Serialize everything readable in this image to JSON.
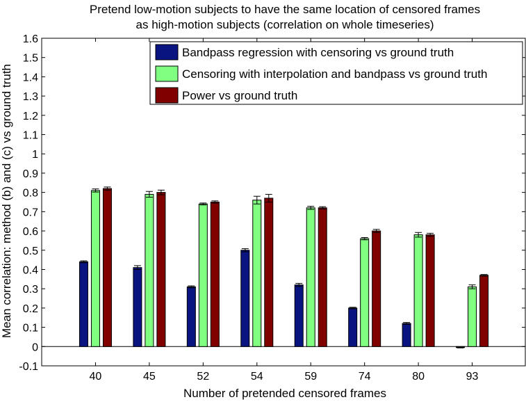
{
  "chart_data": {
    "type": "bar",
    "title_lines": [
      "Pretend low-motion subjects to have the same location of censored frames",
      "as high-motion subjects (correlation on whole timeseries)"
    ],
    "xlabel": "Number of pretended censored frames",
    "ylabel": "Mean correlation: method (b) and (c) vs ground truth",
    "categories": [
      "40",
      "45",
      "52",
      "54",
      "59",
      "74",
      "80",
      "93"
    ],
    "ylim": [
      -0.1,
      1.6
    ],
    "yticks": [
      "-0.1",
      "0",
      "0.1",
      "0.2",
      "0.3",
      "0.4",
      "0.5",
      "0.6",
      "0.7",
      "0.8",
      "0.9",
      "1",
      "1.1",
      "1.2",
      "1.3",
      "1.4",
      "1.5",
      "1.6"
    ],
    "grid": false,
    "legend_position": "top-right",
    "series": [
      {
        "name": "Bandpass regression with censoring vs ground truth",
        "color": "#0a1480",
        "values": [
          0.44,
          0.41,
          0.31,
          0.5,
          0.32,
          0.2,
          0.12,
          -0.005
        ],
        "errors": [
          0.005,
          0.01,
          0.005,
          0.008,
          0.008,
          0.004,
          0.005,
          0.002
        ]
      },
      {
        "name": "Censoring with interpolation and bandpass vs ground truth",
        "color": "#80ff80",
        "values": [
          0.81,
          0.79,
          0.74,
          0.76,
          0.72,
          0.56,
          0.58,
          0.31
        ],
        "errors": [
          0.008,
          0.015,
          0.005,
          0.02,
          0.008,
          0.006,
          0.012,
          0.01
        ]
      },
      {
        "name": "Power vs ground truth",
        "color": "#800000",
        "values": [
          0.82,
          0.8,
          0.75,
          0.77,
          0.72,
          0.6,
          0.58,
          0.37
        ],
        "errors": [
          0.008,
          0.012,
          0.006,
          0.02,
          0.006,
          0.008,
          0.008,
          0.004
        ]
      }
    ]
  }
}
